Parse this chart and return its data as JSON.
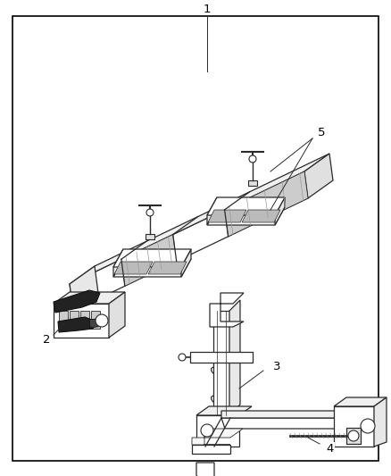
{
  "background_color": "#ffffff",
  "border_color": "#000000",
  "line_color": "#2a2a2a",
  "fig_width": 4.38,
  "fig_height": 5.33,
  "dpi": 100
}
